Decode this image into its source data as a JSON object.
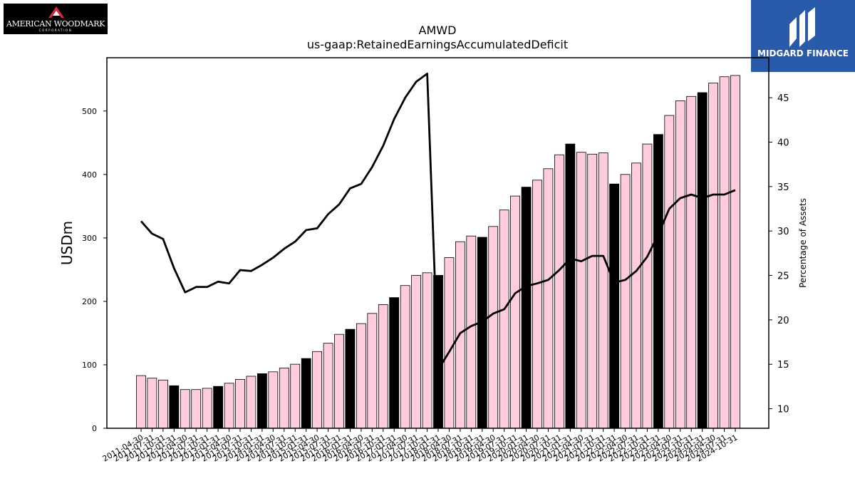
{
  "branding": {
    "left_logo_text": "AMERICAN WOODMARK",
    "left_logo_subtext": "CORPORATION",
    "right_logo_text": "MIDGARD FINANCE"
  },
  "chart_data": {
    "type": "bar",
    "title": "AMWD",
    "subtitle": "us-gaap:RetainedEarningsAccumulatedDeficit",
    "ylabel": "USDm",
    "y2label": "Percentage of Assets",
    "ylim": [
      0,
      584
    ],
    "y2lim": [
      7.8,
      49.5
    ],
    "yticks": [
      0,
      100,
      200,
      300,
      400,
      500
    ],
    "y2ticks": [
      10,
      15,
      20,
      25,
      30,
      35,
      40,
      45
    ],
    "colors": {
      "bar_default": "#ffccdd",
      "bar_highlight": "#000000",
      "line": "#000000"
    },
    "categories": [
      "2011-04-30",
      "2011-07-31",
      "2011-10-31",
      "2012-01-31",
      "2012-04-30",
      "2012-07-31",
      "2012-10-31",
      "2013-01-31",
      "2013-04-30",
      "2013-07-31",
      "2013-10-31",
      "2014-01-31",
      "2014-04-30",
      "2014-07-31",
      "2014-10-31",
      "2015-01-31",
      "2015-04-30",
      "2015-07-31",
      "2015-10-31",
      "2016-01-31",
      "2016-04-30",
      "2016-07-31",
      "2016-10-31",
      "2017-01-31",
      "2017-04-30",
      "2017-07-31",
      "2017-10-31",
      "2018-01-31",
      "2018-04-30",
      "2018-07-31",
      "2018-10-31",
      "2019-01-31",
      "2019-04-30",
      "2019-07-31",
      "2019-10-31",
      "2020-01-31",
      "2020-04-30",
      "2020-07-31",
      "2020-10-31",
      "2021-01-31",
      "2021-04-30",
      "2021-07-31",
      "2021-10-31",
      "2022-01-31",
      "2022-04-30",
      "2022-07-31",
      "2022-10-31",
      "2023-01-31",
      "2023-04-30",
      "2023-07-31",
      "2023-10-31",
      "2024-01-31",
      "2024-04-30",
      "2024-07-31",
      "2024-10-31"
    ],
    "series": [
      {
        "type": "bar",
        "axis": "left",
        "values": [
          83,
          79,
          76,
          67,
          61,
          61,
          63,
          66,
          71,
          77,
          82,
          86,
          89,
          95,
          101,
          110,
          121,
          134,
          148,
          156,
          165,
          181,
          195,
          206,
          225,
          241,
          245,
          241,
          269,
          294,
          303,
          301,
          318,
          344,
          366,
          380,
          391,
          409,
          431,
          448,
          435,
          432,
          434,
          385,
          400,
          418,
          448,
          463,
          493,
          516,
          523,
          529,
          544,
          554,
          556
        ],
        "highlight": [
          false,
          false,
          false,
          true,
          false,
          false,
          false,
          true,
          false,
          false,
          false,
          true,
          false,
          false,
          false,
          true,
          false,
          false,
          false,
          true,
          false,
          false,
          false,
          true,
          false,
          false,
          false,
          true,
          false,
          false,
          false,
          true,
          false,
          false,
          false,
          true,
          false,
          false,
          false,
          true,
          false,
          false,
          false,
          true,
          false,
          false,
          false,
          true,
          false,
          false,
          false,
          true,
          false,
          false,
          false
        ]
      },
      {
        "type": "line",
        "axis": "right",
        "values": [
          31.1,
          29.7,
          29.1,
          25.8,
          23.1,
          23.7,
          23.7,
          24.3,
          24.1,
          25.6,
          25.5,
          26.2,
          27.0,
          28.0,
          28.8,
          30.1,
          30.3,
          31.9,
          33.0,
          34.8,
          35.3,
          37.2,
          39.6,
          42.6,
          45.0,
          46.8,
          47.7,
          14.4,
          16.4,
          18.5,
          19.3,
          19.8,
          20.7,
          21.2,
          23.0,
          23.8,
          24.1,
          24.5,
          25.6,
          26.9,
          26.6,
          27.2,
          27.2,
          24.2,
          24.5,
          25.5,
          27.1,
          29.6,
          32.5,
          33.7,
          34.1,
          33.7,
          34.1,
          34.1,
          34.6
        ]
      }
    ]
  }
}
